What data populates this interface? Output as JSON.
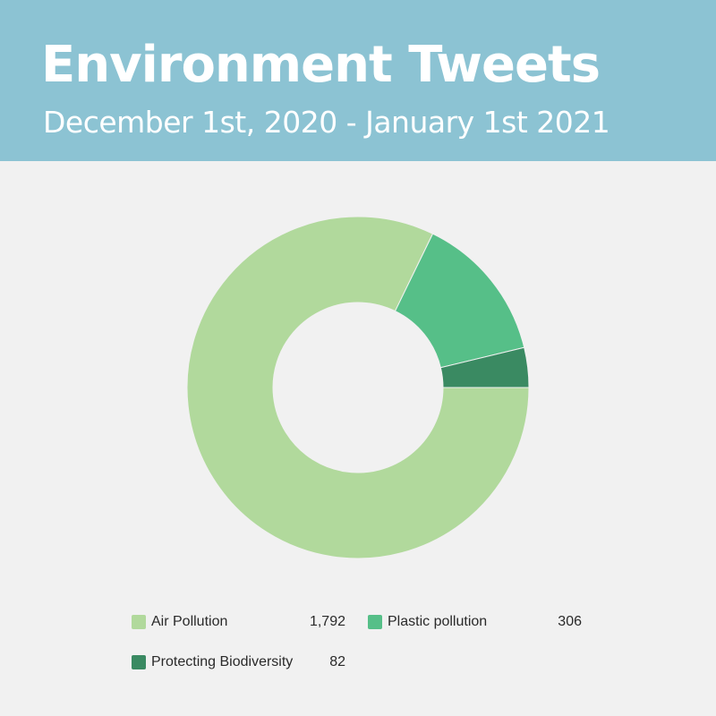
{
  "header": {
    "title": "Environment Tweets",
    "subtitle": "December 1st, 2020 - January 1st 2021",
    "background": "#8cc3d3"
  },
  "chart_data": {
    "type": "pie",
    "variant": "donut",
    "categories": [
      "Air Pollution",
      "Plastic pollution",
      "Protecting Biodiversity"
    ],
    "values": [
      1792,
      306,
      82
    ],
    "value_labels": [
      "1,792",
      "306",
      "82"
    ],
    "colors": [
      "#b1d99c",
      "#56bf88",
      "#3a8a62"
    ],
    "legend_placement": "bottom"
  },
  "legend": {
    "items": [
      {
        "label": "Air Pollution",
        "value": "1,792",
        "color": "#b1d99c"
      },
      {
        "label": "Plastic pollution",
        "value": "306",
        "color": "#56bf88"
      },
      {
        "label": "Protecting Biodiversity",
        "value": "82",
        "color": "#3a8a62"
      }
    ]
  }
}
